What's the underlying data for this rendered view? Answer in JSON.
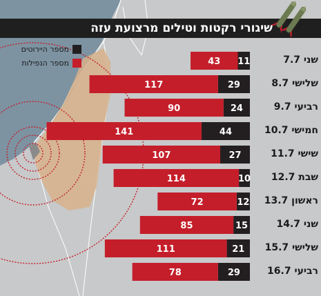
{
  "chart_data": {
    "type": "bar",
    "title": "שיגורי רקטות וטילים מרצועת עזה",
    "categories": [
      "שני 7.7",
      "שלישי 8.7",
      "רביעי 9.7",
      "חמישי 10.7",
      "שישי 11.7",
      "שבת 12.7",
      "ראשון 13.7",
      "שני 14.7",
      "שלישי 15.7",
      "רביעי 16.7"
    ],
    "series": [
      {
        "name": "מספר היירוטים",
        "values": [
          11,
          29,
          24,
          44,
          27,
          10,
          12,
          15,
          21,
          29
        ],
        "color": "#231f20"
      },
      {
        "name": "מספר הנפילות",
        "values": [
          43,
          117,
          90,
          141,
          107,
          114,
          72,
          85,
          111,
          78
        ],
        "color": "#c41e2a"
      }
    ],
    "stacked": true,
    "orientation": "horizontal",
    "legend_position": "top-left",
    "grid": false
  },
  "icons": [
    "rocket-icon",
    "map-israel"
  ]
}
